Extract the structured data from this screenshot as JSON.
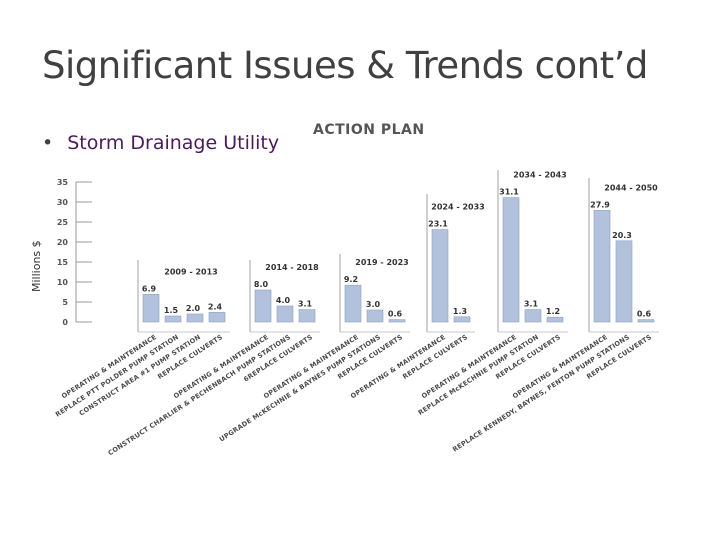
{
  "slide": {
    "title": "Significant Issues & Trends cont’d",
    "bullet": "Storm Drainage Utility",
    "action_plan_label": "ACTION PLAN"
  },
  "chart_data": {
    "type": "bar",
    "title": "",
    "ylabel": "Millions $",
    "ylim": [
      0,
      35
    ],
    "yticks": [
      0,
      5,
      10,
      15,
      20,
      25,
      30,
      35
    ],
    "colors": {
      "bar": "#b3c2dc",
      "bar_dark": "#8c9fbf",
      "text": "#333333"
    },
    "groups": [
      {
        "period": "2009 - 2013",
        "bars": [
          {
            "label": "OPERATING & MAINTENANCE",
            "value": 6.9,
            "value_label": "6.9"
          },
          {
            "label": "REPLACE PTT POLDER PUMP STATION",
            "value": 1.5,
            "value_label": "1.5"
          },
          {
            "label": "CONSTRUCT AREA #1 PUMP STATION",
            "value": 2.0,
            "value_label": "2.0"
          },
          {
            "label": "REPLACE CULVERTS",
            "value": 2.4,
            "value_label": "2.4"
          }
        ]
      },
      {
        "period": "2014 - 2018",
        "bars": [
          {
            "label": "OPERATING & MAINTENANCE",
            "value": 8.0,
            "value_label": "8.0"
          },
          {
            "label": "CONSTRUCT CHARLIER & PECHENBACH PUMP STATIONS",
            "value": 4.0,
            "value_label": "4.0"
          },
          {
            "label": "6REPLACE CULVERTS",
            "value": 3.1,
            "value_label": "3.1"
          }
        ]
      },
      {
        "period": "2019 - 2023",
        "bars": [
          {
            "label": "OPERATING & MAINTENANCE",
            "value": 9.2,
            "value_label": "9.2"
          },
          {
            "label": "UPGRADE McKECHNIE & BAYNES PUMP STATIONS",
            "value": 3.0,
            "value_label": "3.0"
          },
          {
            "label": "REPLACE CULVERTS",
            "value": 0.6,
            "value_label": "0.6"
          }
        ]
      },
      {
        "period": "2024 - 2033",
        "bars": [
          {
            "label": "OPERATING & MAINTENANCE",
            "value": 23.1,
            "value_label": "23.1"
          },
          {
            "label": "REPLACE CULVERTS",
            "value": 1.3,
            "value_label": "1.3"
          }
        ]
      },
      {
        "period": "2034 - 2043",
        "bars": [
          {
            "label": "OPERATING & MAINTENANCE",
            "value": 31.1,
            "value_label": "31.1"
          },
          {
            "label": "REPLACE McKECHNIE PUMP STATION",
            "value": 3.1,
            "value_label": "3.1"
          },
          {
            "label": "REPLACE CULVERTS",
            "value": 1.2,
            "value_label": "1.2"
          }
        ]
      },
      {
        "period": "2044 - 2050",
        "bars": [
          {
            "label": "OPERATING & MAINTENANCE",
            "value": 27.9,
            "value_label": "27.9"
          },
          {
            "label": "REPLACE KENNEDY, BAYNES, FENTON PUMP STATIONS",
            "value": 20.3,
            "value_label": "20.3"
          },
          {
            "label": "REPLACE CULVERTS",
            "value": 0.6,
            "value_label": "0.6"
          }
        ]
      }
    ]
  }
}
